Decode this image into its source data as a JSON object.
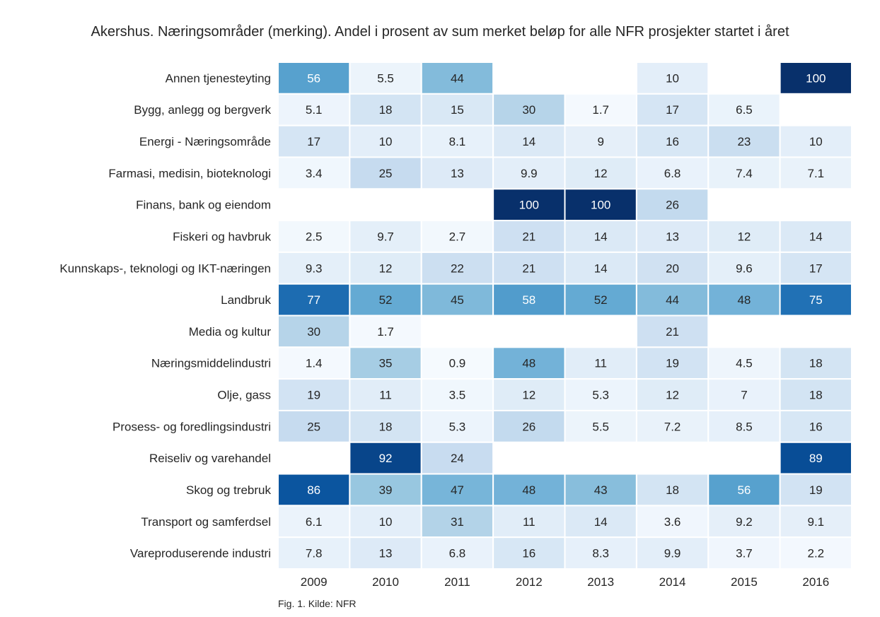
{
  "title": "Akershus. Næringsområder (merking). Andel i prosent av sum merket beløp for alle NFR prosjekter startet i året",
  "caption": "Fig. 1. Kilde: NFR",
  "chart_data": {
    "type": "heatmap",
    "title": "Akershus. Næringsområder (merking). Andel i prosent av sum merket beløp for alle NFR prosjekter startet i året",
    "xlabel": "",
    "ylabel": "",
    "colormap": "Blues",
    "value_range": [
      0,
      100
    ],
    "grid": false,
    "legend": "none",
    "x": [
      "2009",
      "2010",
      "2011",
      "2012",
      "2013",
      "2014",
      "2015",
      "2016"
    ],
    "y": [
      "Annen tjenesteyting",
      "Bygg, anlegg og bergverk",
      "Energi - Næringsområde",
      "Farmasi, medisin, bioteknologi",
      "Finans, bank og eiendom",
      "Fiskeri og havbruk",
      "Kunnskaps-, teknologi og IKT-næringen",
      "Landbruk",
      "Media og kultur",
      "Næringsmiddelindustri",
      "Olje, gass",
      "Prosess- og foredlingsindustri",
      "Reiseliv og varehandel",
      "Skog og trebruk",
      "Transport og samferdsel",
      "Vareproduserende industri"
    ],
    "values": [
      [
        56,
        5.5,
        44,
        null,
        null,
        10,
        null,
        100
      ],
      [
        5.1,
        18,
        15,
        30,
        1.7,
        17,
        6.5,
        null
      ],
      [
        17,
        10,
        8.1,
        14,
        9,
        16,
        23,
        10
      ],
      [
        3.4,
        25,
        13,
        9.9,
        12,
        6.8,
        7.4,
        7.1
      ],
      [
        null,
        null,
        null,
        100,
        100,
        26,
        null,
        null
      ],
      [
        2.5,
        9.7,
        2.7,
        21,
        14,
        13,
        12,
        14
      ],
      [
        9.3,
        12,
        22,
        21,
        14,
        20,
        9.6,
        17
      ],
      [
        77,
        52,
        45,
        58,
        52,
        44,
        48,
        75
      ],
      [
        30,
        1.7,
        null,
        null,
        null,
        21,
        null,
        null
      ],
      [
        1.4,
        35,
        0.9,
        48,
        11,
        19,
        4.5,
        18
      ],
      [
        19,
        11,
        3.5,
        12,
        5.3,
        12,
        7,
        18
      ],
      [
        25,
        18,
        5.3,
        26,
        5.5,
        7.2,
        8.5,
        16
      ],
      [
        null,
        92,
        24,
        null,
        null,
        null,
        null,
        89
      ],
      [
        86,
        39,
        47,
        48,
        43,
        18,
        56,
        19
      ],
      [
        6.1,
        10,
        31,
        11,
        14,
        3.6,
        9.2,
        9.1
      ],
      [
        7.8,
        13,
        6.8,
        16,
        8.3,
        9.9,
        3.7,
        2.2
      ]
    ]
  }
}
